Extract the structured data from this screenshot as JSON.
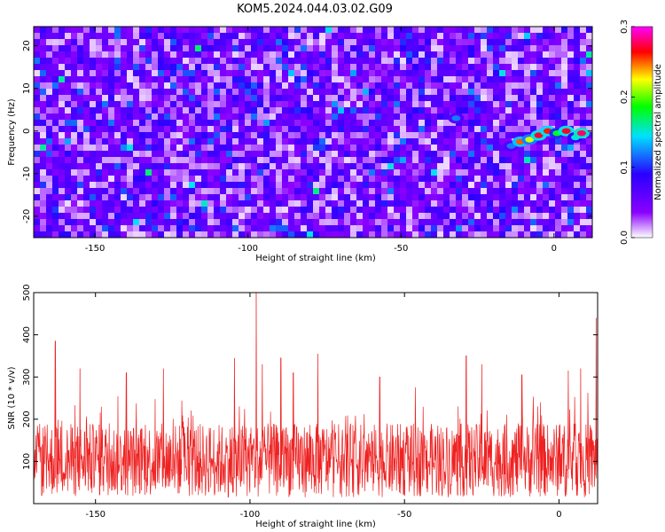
{
  "title": "KOM5.2024.044.03.02.G09",
  "colors": {
    "series": "#ee2222",
    "background": "#ffffff",
    "axis": "#000000",
    "colormap": [
      "#ffffff",
      "#8a00ff",
      "#2a00ff",
      "#00e0ff",
      "#00ff00",
      "#ffff00",
      "#ff0000",
      "#ff00ff"
    ]
  },
  "chart_data": [
    {
      "type": "heatmap",
      "title": "KOM5.2024.044.03.02.G09",
      "xlabel": "Height of straight line (km)",
      "ylabel": "Frequency (Hz)",
      "xlim": [
        -170,
        12.5
      ],
      "ylim": [
        -25,
        24.5
      ],
      "xticks": [
        -150,
        -100,
        -50,
        0
      ],
      "yticks": [
        -20,
        -10,
        0,
        10,
        20
      ],
      "colorbar": {
        "label": "Normalized spectral amplitude",
        "range": [
          0.0,
          0.3
        ],
        "ticks": [
          "0.0",
          "0.1",
          "0.2",
          "0.3"
        ]
      },
      "features": {
        "background": "noise, amplitude mostly 0.0 to 0.1",
        "highlight": "streak near 0 Hz from about -15 km to 10 km, amplitude up to about 0.3",
        "highlight_points": [
          {
            "x": -14,
            "y": -3.5,
            "v": 0.12
          },
          {
            "x": -11,
            "y": -2.5,
            "v": 0.25
          },
          {
            "x": -8,
            "y": -2.0,
            "v": 0.22
          },
          {
            "x": -5,
            "y": -1.0,
            "v": 0.27
          },
          {
            "x": -2,
            "y": 0.0,
            "v": 0.26
          },
          {
            "x": 1,
            "y": -0.5,
            "v": 0.18
          },
          {
            "x": 4,
            "y": 0.0,
            "v": 0.27
          },
          {
            "x": 7,
            "y": -1.5,
            "v": 0.15
          },
          {
            "x": 9,
            "y": -0.5,
            "v": 0.28
          },
          {
            "x": -32,
            "y": 3.0,
            "v": 0.12
          }
        ]
      },
      "grid": false
    },
    {
      "type": "line",
      "xlabel": "Height of straight line (km)",
      "ylabel": "SNR (10 * v/v)",
      "xlim": [
        -170,
        12.5
      ],
      "ylim": [
        0,
        500
      ],
      "xticks": [
        -150,
        -100,
        -50,
        0
      ],
      "yticks": [
        100,
        200,
        300,
        400,
        500
      ],
      "description": "dense noisy line, mostly between 0 and 300",
      "peaks": [
        {
          "x": -163,
          "y": 385
        },
        {
          "x": -155,
          "y": 320
        },
        {
          "x": -140,
          "y": 310
        },
        {
          "x": -128,
          "y": 320
        },
        {
          "x": -105,
          "y": 345
        },
        {
          "x": -98,
          "y": 500
        },
        {
          "x": -96,
          "y": 330
        },
        {
          "x": -90,
          "y": 345
        },
        {
          "x": -86,
          "y": 310
        },
        {
          "x": -78,
          "y": 355
        },
        {
          "x": -58,
          "y": 300
        },
        {
          "x": -30,
          "y": 350
        },
        {
          "x": -25,
          "y": 330
        },
        {
          "x": -12,
          "y": 305
        },
        {
          "x": 3,
          "y": 315
        },
        {
          "x": 7,
          "y": 320
        },
        {
          "x": 12,
          "y": 440
        }
      ],
      "grid": false
    }
  ]
}
